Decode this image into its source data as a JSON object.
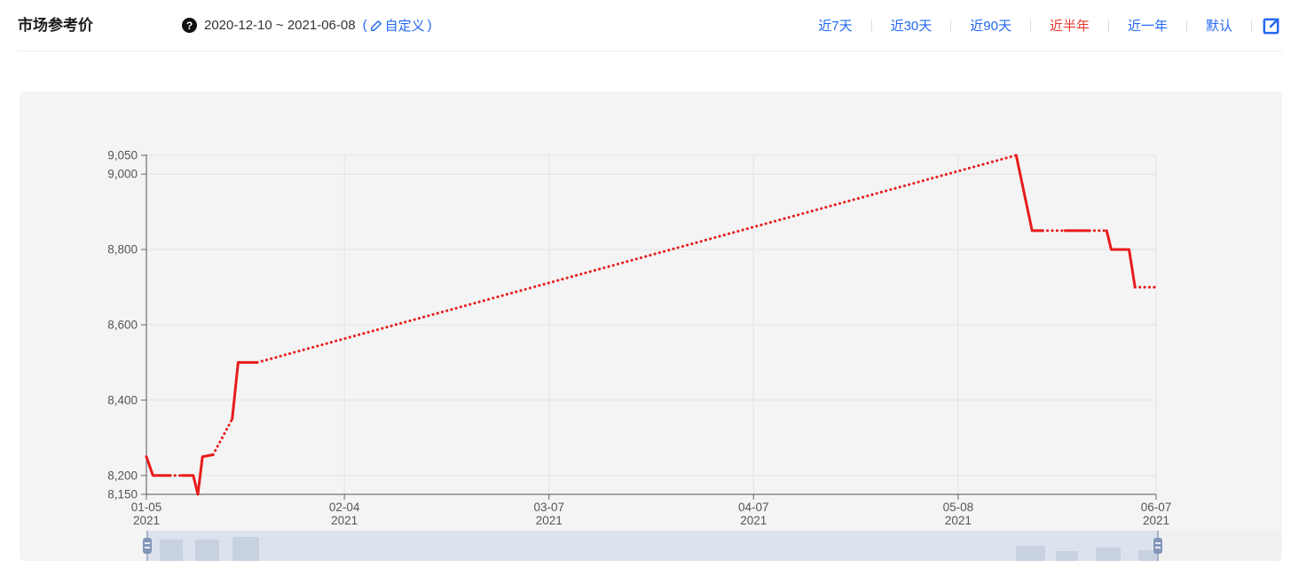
{
  "header": {
    "title": "市场参考价",
    "help_glyph": "?",
    "date_range": "2020-12-10 ~ 2021-06-08",
    "custom_prefix": "(",
    "custom_label": "自定义",
    "custom_suffix": ")",
    "ranges": [
      {
        "label": "近7天",
        "active": false
      },
      {
        "label": "近30天",
        "active": false
      },
      {
        "label": "近90天",
        "active": false
      },
      {
        "label": "近半年",
        "active": true
      },
      {
        "label": "近一年",
        "active": false
      },
      {
        "label": "默认",
        "active": false
      }
    ],
    "accent_blue": "#2468f2",
    "accent_red": "#e8392f"
  },
  "chart_data": {
    "type": "line",
    "series_name": "市场参考价",
    "line_color": "#e81b1b",
    "grid_on": true,
    "x_axis": {
      "range_days": [
        0,
        153
      ],
      "ticks": [
        {
          "label": "01-05",
          "sub": "2021",
          "day": 0
        },
        {
          "label": "02-04",
          "sub": "2021",
          "day": 30
        },
        {
          "label": "03-07",
          "sub": "2021",
          "day": 61
        },
        {
          "label": "04-07",
          "sub": "2021",
          "day": 92
        },
        {
          "label": "05-08",
          "sub": "2021",
          "day": 123
        },
        {
          "label": "06-07",
          "sub": "2021",
          "day": 153
        }
      ]
    },
    "y_axis": {
      "range": [
        8150,
        9050
      ],
      "ticks": [
        {
          "label": "9,050",
          "value": 9050
        },
        {
          "label": "9,000",
          "value": 9000
        },
        {
          "label": "8,800",
          "value": 8800
        },
        {
          "label": "8,600",
          "value": 8600
        },
        {
          "label": "8,400",
          "value": 8400
        },
        {
          "label": "8,200",
          "value": 8200
        },
        {
          "label": "8,150",
          "value": 8150
        }
      ]
    },
    "segments": [
      {
        "style": "solid",
        "points": [
          [
            0,
            8250
          ],
          [
            1,
            8200
          ],
          [
            3.6,
            8200
          ]
        ]
      },
      {
        "style": "dotted",
        "points": [
          [
            3.6,
            8200
          ],
          [
            5.4,
            8200
          ]
        ]
      },
      {
        "style": "solid",
        "points": [
          [
            5.4,
            8200
          ],
          [
            7.1,
            8200
          ],
          [
            7.8,
            8150
          ],
          [
            8.5,
            8250
          ],
          [
            10.1,
            8255
          ]
        ]
      },
      {
        "style": "dotted",
        "points": [
          [
            10.1,
            8255
          ],
          [
            13,
            8350
          ]
        ]
      },
      {
        "style": "solid",
        "points": [
          [
            13,
            8350
          ],
          [
            13.9,
            8500
          ],
          [
            16.8,
            8500
          ]
        ]
      },
      {
        "style": "dotted",
        "points": [
          [
            16.8,
            8500
          ],
          [
            131.8,
            9050
          ]
        ]
      },
      {
        "style": "solid",
        "points": [
          [
            131.8,
            9050
          ],
          [
            134.2,
            8850
          ],
          [
            135.8,
            8850
          ]
        ]
      },
      {
        "style": "dotted",
        "points": [
          [
            135.8,
            8850
          ],
          [
            139.2,
            8850
          ]
        ]
      },
      {
        "style": "solid",
        "points": [
          [
            139.2,
            8850
          ],
          [
            142.9,
            8850
          ]
        ]
      },
      {
        "style": "dotted",
        "points": [
          [
            142.9,
            8850
          ],
          [
            145.5,
            8850
          ]
        ]
      },
      {
        "style": "solid",
        "points": [
          [
            145.5,
            8850
          ],
          [
            146.2,
            8800
          ],
          [
            148.9,
            8800
          ],
          [
            149.8,
            8700
          ]
        ]
      },
      {
        "style": "dotted",
        "points": [
          [
            149.8,
            8700
          ],
          [
            153,
            8700
          ]
        ]
      }
    ]
  },
  "datazoom": {
    "track": [
      143,
      1421
    ],
    "window": [
      144,
      1283
    ],
    "shadow_blocks": [
      [
        158,
        26,
        24
      ],
      [
        198,
        27,
        24
      ],
      [
        240,
        30,
        27
      ],
      [
        1123,
        33,
        17
      ],
      [
        1168,
        25,
        11
      ],
      [
        1213,
        28,
        15
      ],
      [
        1261,
        22,
        12
      ]
    ]
  }
}
